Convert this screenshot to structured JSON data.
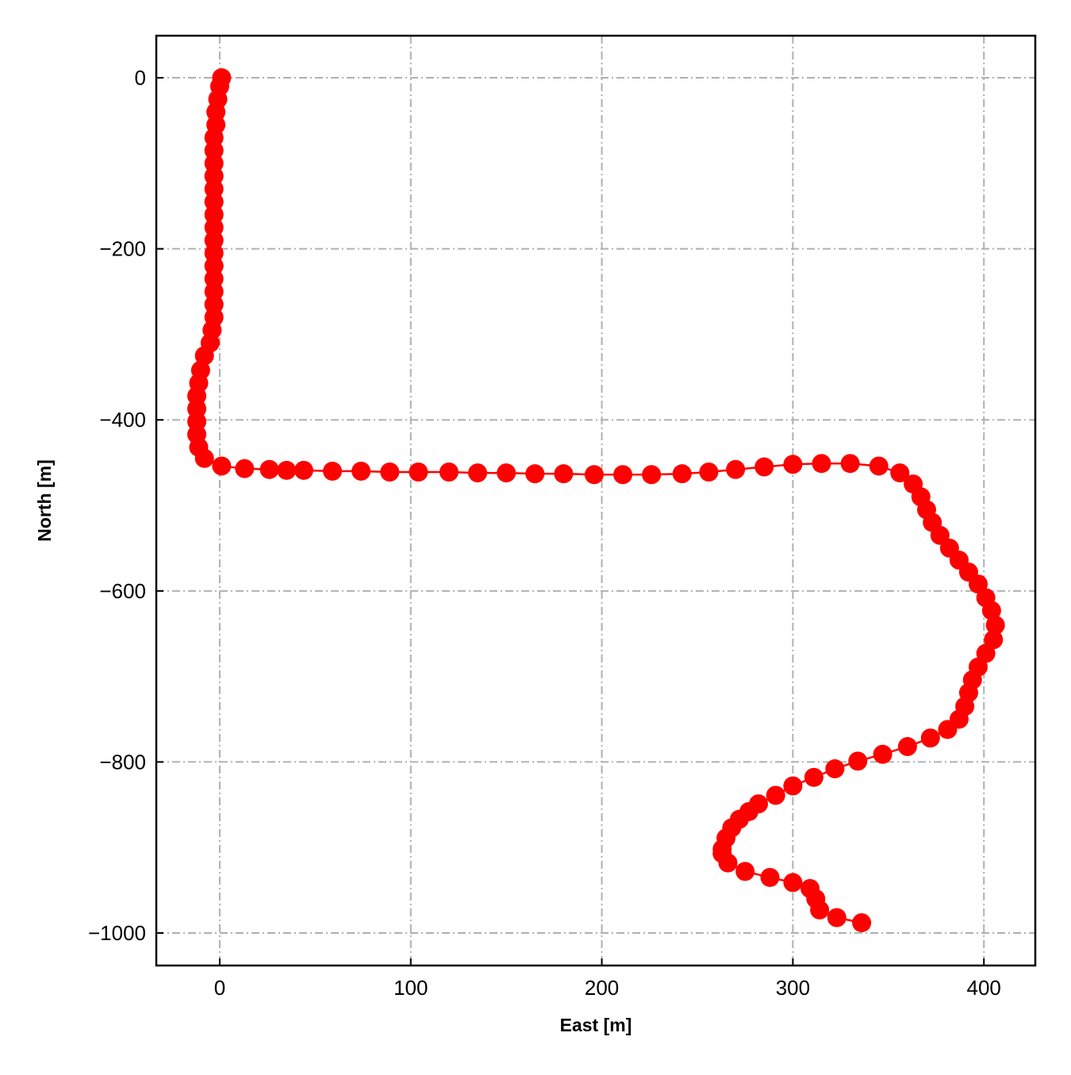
{
  "chart_data": {
    "type": "line",
    "xlabel": "East [m]",
    "ylabel": "North [m]",
    "x": [
      1,
      0,
      -1,
      -2,
      -2,
      -3,
      -3,
      -3,
      -3,
      -3,
      -3,
      -3,
      -3,
      -3,
      -3,
      -3,
      -3,
      -3,
      -3,
      -3,
      -4,
      -5,
      -8,
      -10,
      -11,
      -12,
      -12,
      -12,
      -12,
      -11,
      -8,
      1,
      13,
      26,
      35,
      44,
      59,
      74,
      89,
      104,
      120,
      135,
      150,
      165,
      180,
      196,
      211,
      226,
      242,
      256,
      270,
      285,
      300,
      315,
      330,
      345,
      356,
      363,
      367,
      370,
      373,
      377,
      382,
      387,
      392,
      397,
      401,
      404,
      406,
      405,
      401,
      397,
      394,
      392,
      390,
      387,
      381,
      372,
      360,
      347,
      334,
      322,
      311,
      300,
      291,
      282,
      277,
      272,
      268,
      265,
      263,
      263,
      266,
      275,
      288,
      300,
      309,
      312,
      314,
      323,
      336
    ],
    "series": [
      {
        "color": "#ff0000",
        "values": [
          0,
          -10,
          -25,
          -40,
          -55,
          -70,
          -85,
          -100,
          -115,
          -130,
          -145,
          -160,
          -175,
          -190,
          -205,
          -220,
          -235,
          -250,
          -265,
          -280,
          -295,
          -310,
          -325,
          -342,
          -357,
          -372,
          -387,
          -402,
          -417,
          -432,
          -445,
          -454,
          -457,
          -458,
          -459,
          -459,
          -460,
          -460,
          -461,
          -461,
          -461,
          -462,
          -462,
          -463,
          -463,
          -464,
          -464,
          -464,
          -463,
          -461,
          -458,
          -455,
          -452,
          -451,
          -451,
          -454,
          -462,
          -475,
          -490,
          -505,
          -520,
          -535,
          -550,
          -564,
          -578,
          -592,
          -608,
          -623,
          -640,
          -657,
          -673,
          -689,
          -704,
          -719,
          -735,
          -750,
          -762,
          -772,
          -782,
          -791,
          -799,
          -808,
          -818,
          -828,
          -839,
          -849,
          -858,
          -867,
          -877,
          -889,
          -902,
          -907,
          -918,
          -928,
          -935,
          -941,
          -948,
          -960,
          -973,
          -982,
          -988
        ]
      }
    ],
    "xlim": [
      -33.2,
      426.9
    ],
    "ylim": [
      -1038,
      49.2
    ],
    "xticks": [
      0,
      100,
      200,
      300,
      400
    ],
    "yticks": [
      0,
      {
        "value": -200,
        "label": "−200"
      },
      {
        "value": -400,
        "label": "−400"
      },
      {
        "value": -600,
        "label": "−600"
      },
      {
        "value": -800,
        "label": "−800"
      },
      {
        "value": -1000,
        "label": "−1000"
      }
    ],
    "grid": true
  }
}
